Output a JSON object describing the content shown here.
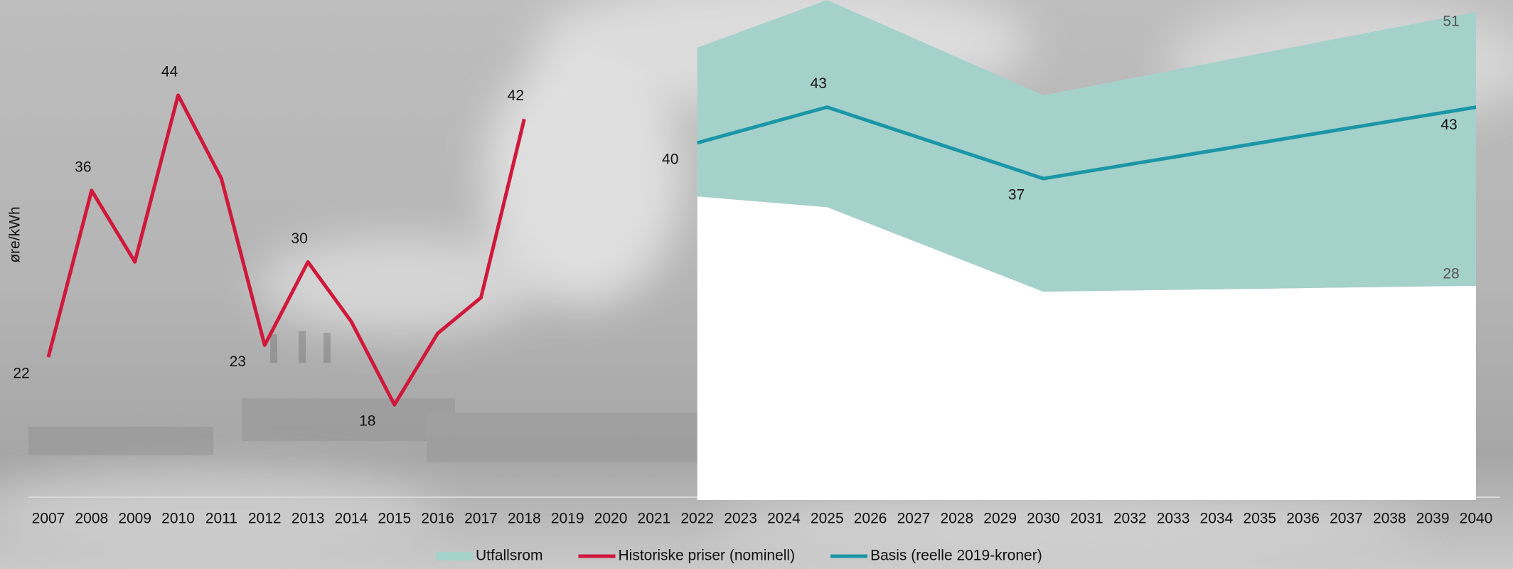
{
  "chart_data": {
    "type": "line",
    "y_axis_label": "øre/kWh",
    "categories": [
      "2007",
      "2008",
      "2009",
      "2010",
      "2011",
      "2012",
      "2013",
      "2014",
      "2015",
      "2016",
      "2017",
      "2018",
      "2019",
      "2020",
      "2021",
      "2022",
      "2023",
      "2024",
      "2025",
      "2026",
      "2027",
      "2028",
      "2029",
      "2030",
      "2031",
      "2032",
      "2033",
      "2034",
      "2035",
      "2036",
      "2037",
      "2038",
      "2039",
      "2040"
    ],
    "ylim": [
      10,
      52
    ],
    "series": [
      {
        "name": "Utfallsrom",
        "type": "band",
        "color": "#a5d1cb",
        "values": [
          null,
          null,
          null,
          null,
          null,
          null,
          null,
          null,
          null,
          null,
          null,
          null,
          null,
          null,
          null,
          48,
          null,
          null,
          52,
          null,
          null,
          null,
          null,
          44,
          null,
          null,
          null,
          null,
          null,
          null,
          null,
          null,
          null,
          51
        ],
        "lower": [
          null,
          null,
          null,
          null,
          null,
          null,
          null,
          null,
          null,
          null,
          null,
          null,
          null,
          null,
          null,
          35.5,
          null,
          null,
          34.6,
          null,
          null,
          null,
          null,
          27.5,
          null,
          null,
          null,
          null,
          null,
          null,
          null,
          null,
          null,
          28
        ],
        "value_labels": [
          null,
          null,
          null,
          null,
          null,
          null,
          null,
          null,
          null,
          null,
          null,
          null,
          null,
          null,
          null,
          null,
          null,
          null,
          null,
          null,
          null,
          null,
          null,
          null,
          null,
          null,
          null,
          null,
          null,
          null,
          null,
          null,
          null,
          "51"
        ],
        "lower_labels": [
          null,
          null,
          null,
          null,
          null,
          null,
          null,
          null,
          null,
          null,
          null,
          null,
          null,
          null,
          null,
          null,
          null,
          null,
          null,
          null,
          null,
          null,
          null,
          null,
          null,
          null,
          null,
          null,
          null,
          null,
          null,
          null,
          null,
          "28"
        ]
      },
      {
        "name": "Historiske priser (nominell)",
        "type": "line",
        "color": "#d0183c",
        "values": [
          22,
          36,
          30,
          44,
          37,
          23,
          30,
          25,
          18,
          24,
          27,
          42,
          null,
          null,
          null,
          null,
          null,
          null,
          null,
          null,
          null,
          null,
          null,
          null,
          null,
          null,
          null,
          null,
          null,
          null,
          null,
          null,
          null,
          null
        ],
        "value_labels": [
          "22",
          "36",
          null,
          "44",
          null,
          "23",
          "30",
          null,
          "18",
          null,
          null,
          "42",
          null,
          null,
          null,
          null,
          null,
          null,
          null,
          null,
          null,
          null,
          null,
          null,
          null,
          null,
          null,
          null,
          null,
          null,
          null,
          null,
          null,
          null
        ]
      },
      {
        "name": "Basis (reelle 2019-kroner)",
        "type": "line",
        "color": "#1b96a6",
        "values": [
          null,
          null,
          null,
          null,
          null,
          null,
          null,
          null,
          null,
          null,
          null,
          null,
          null,
          null,
          null,
          40,
          null,
          null,
          43,
          null,
          null,
          null,
          null,
          37,
          null,
          null,
          null,
          null,
          null,
          null,
          null,
          null,
          null,
          43
        ],
        "value_labels": [
          null,
          null,
          null,
          null,
          null,
          null,
          null,
          null,
          null,
          null,
          null,
          null,
          null,
          null,
          null,
          "40",
          null,
          null,
          "43",
          null,
          null,
          null,
          null,
          "37",
          null,
          null,
          null,
          null,
          null,
          null,
          null,
          null,
          null,
          "43"
        ]
      }
    ]
  }
}
